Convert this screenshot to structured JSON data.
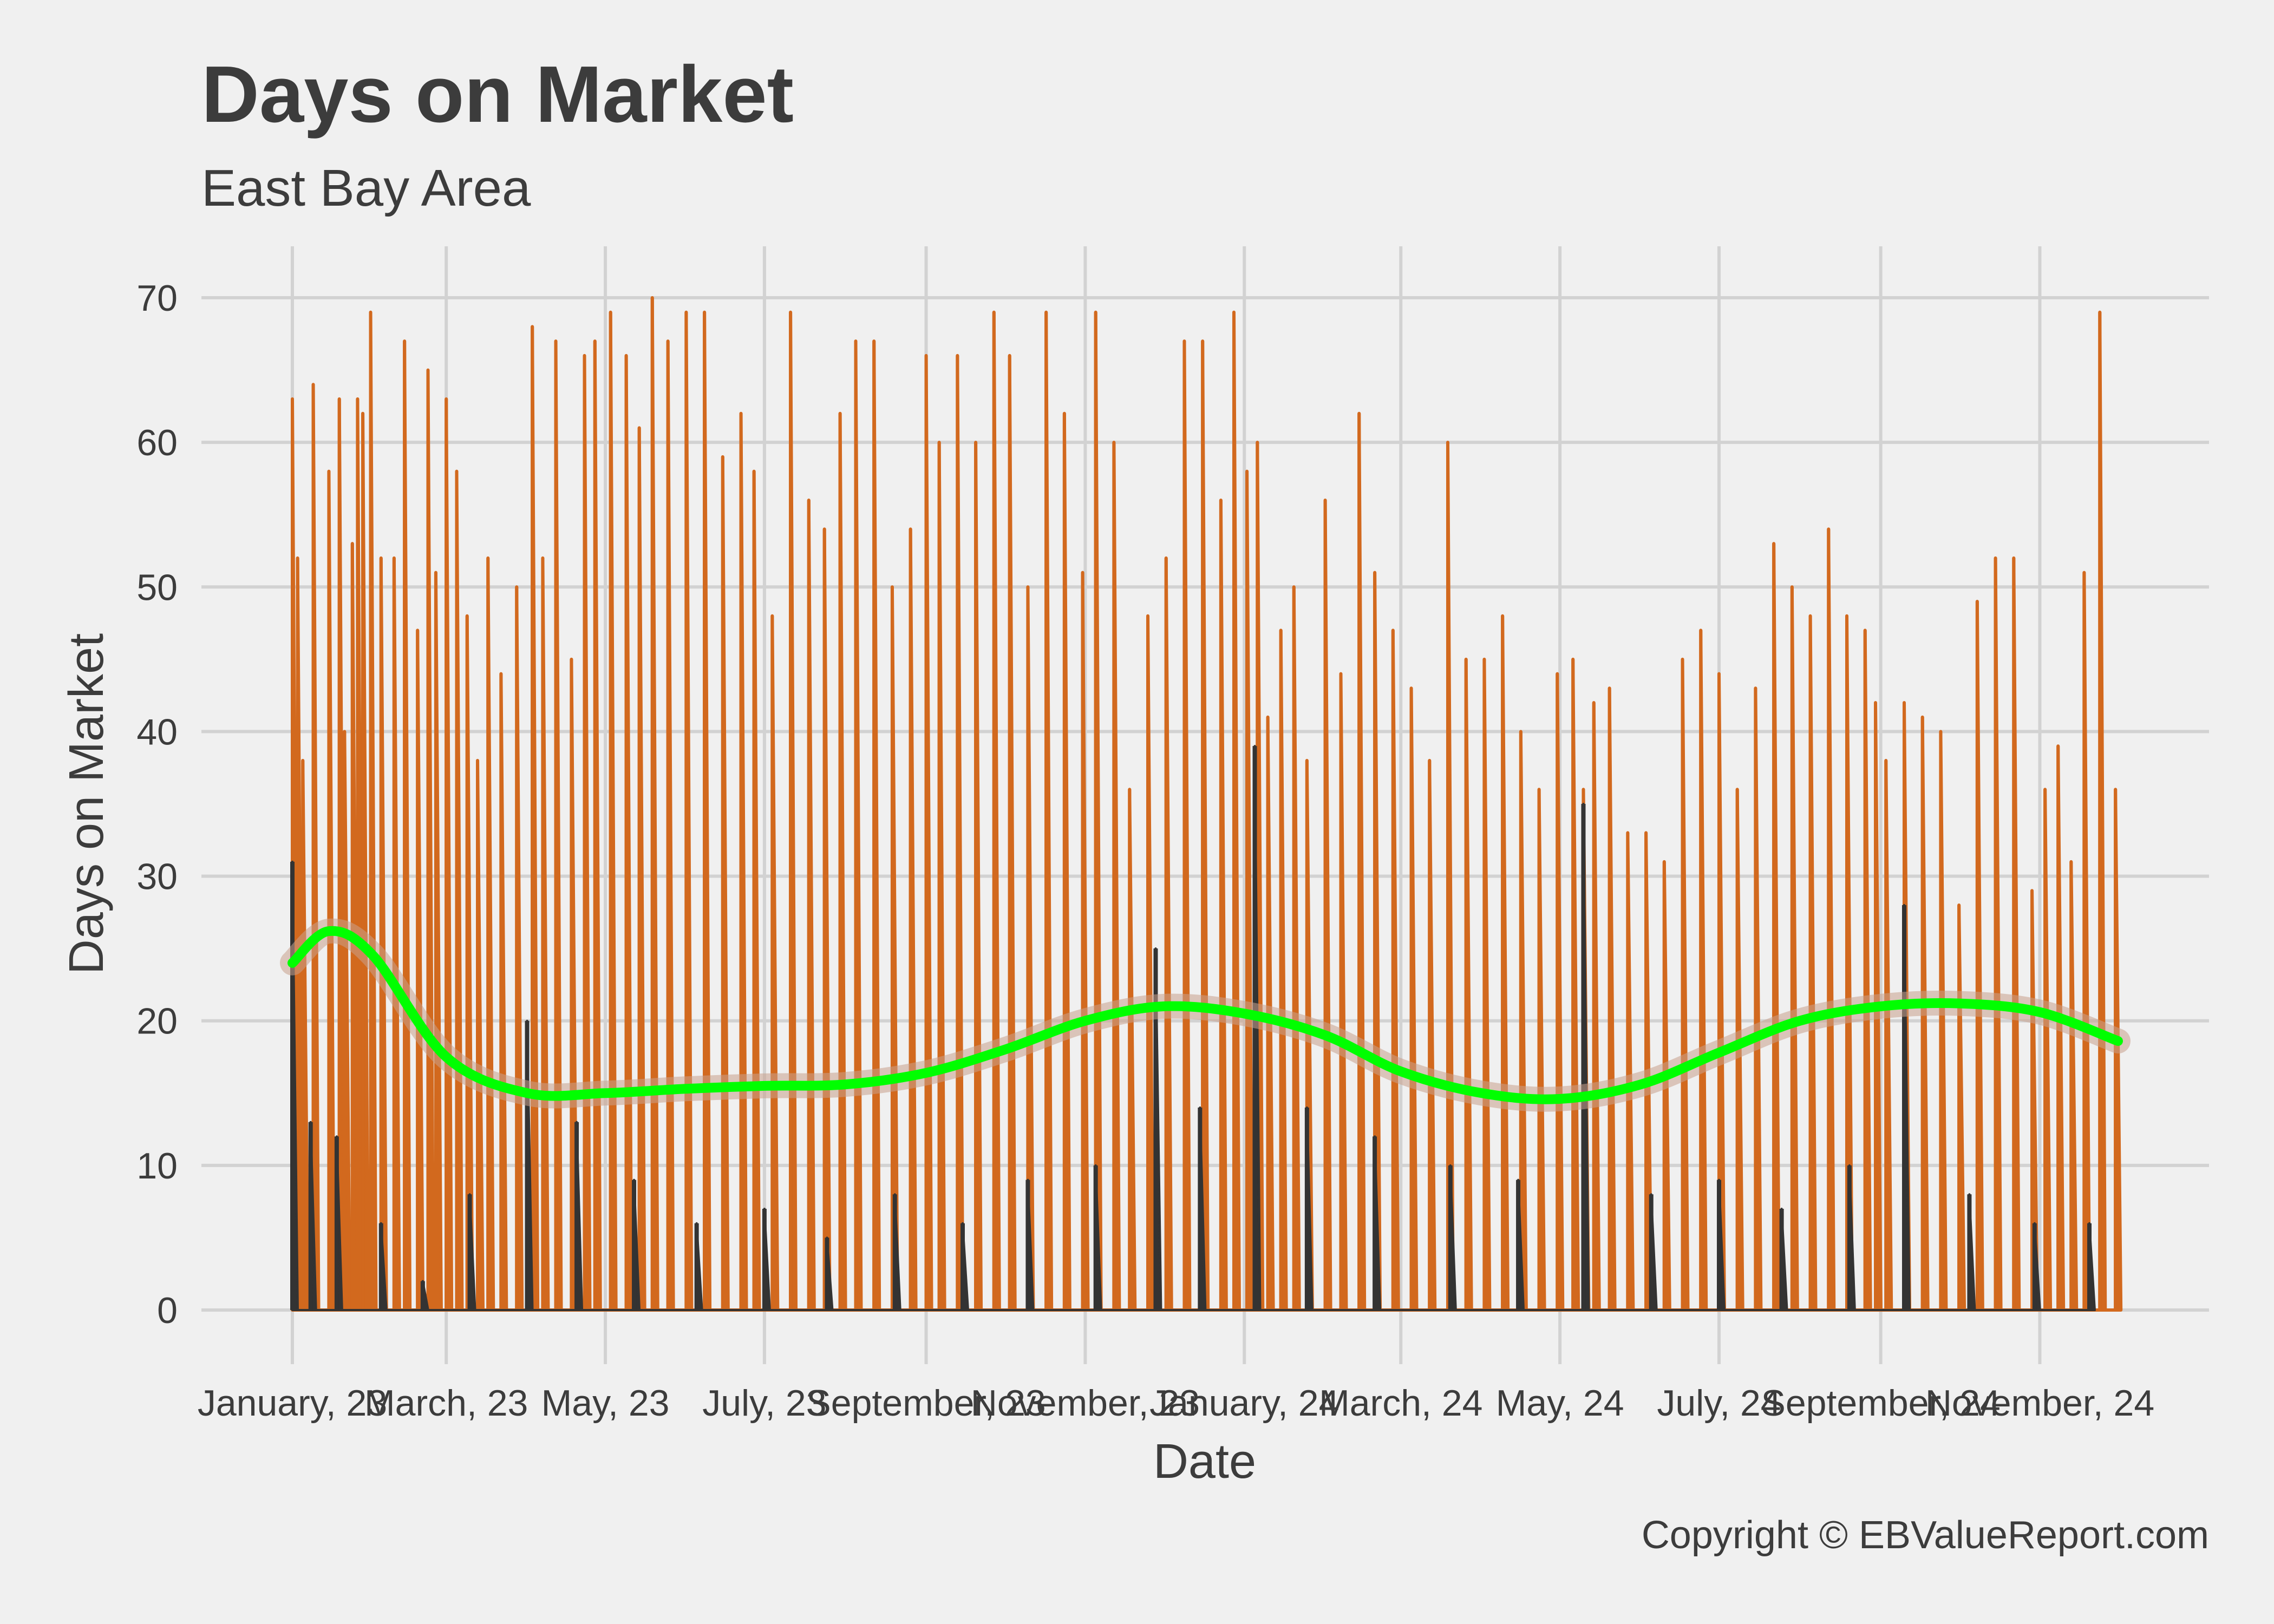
{
  "chart_data": {
    "type": "line",
    "title": "Days on Market",
    "subtitle": "East Bay Area",
    "xlabel": "Date",
    "ylabel": "Days on Market",
    "caption": "Copyright  © EBValueReport.com",
    "ylim": [
      0,
      70
    ],
    "yticks": [
      0,
      10,
      20,
      30,
      40,
      50,
      60,
      70
    ],
    "xlim": [
      "2023-01-01",
      "2024-12-01"
    ],
    "xticks": [
      {
        "date": "2023-01-01",
        "label": "January, 23"
      },
      {
        "date": "2023-03-01",
        "label": "March, 23"
      },
      {
        "date": "2023-05-01",
        "label": "May, 23"
      },
      {
        "date": "2023-07-01",
        "label": "July, 23"
      },
      {
        "date": "2023-09-01",
        "label": "September, 23"
      },
      {
        "date": "2023-11-01",
        "label": "November, 23"
      },
      {
        "date": "2024-01-01",
        "label": "January, 24"
      },
      {
        "date": "2024-03-01",
        "label": "March, 24"
      },
      {
        "date": "2024-05-01",
        "label": "May, 24"
      },
      {
        "date": "2024-07-01",
        "label": "July, 24"
      },
      {
        "date": "2024-09-01",
        "label": "September, 24"
      },
      {
        "date": "2024-11-01",
        "label": "November, 24"
      }
    ],
    "grid": true,
    "series": [
      {
        "kind": "spikes",
        "color": "#d2691e",
        "x": [
          "2023-01-01",
          "2023-01-03",
          "2023-01-05",
          "2023-01-09",
          "2023-01-15",
          "2023-01-19",
          "2023-01-21",
          "2023-01-24",
          "2023-01-26",
          "2023-01-28",
          "2023-01-31",
          "2023-02-04",
          "2023-02-09",
          "2023-02-13",
          "2023-02-18",
          "2023-02-22",
          "2023-02-25",
          "2023-03-01",
          "2023-03-05",
          "2023-03-09",
          "2023-03-13",
          "2023-03-17",
          "2023-03-22",
          "2023-03-28",
          "2023-04-03",
          "2023-04-07",
          "2023-04-12",
          "2023-04-18",
          "2023-04-23",
          "2023-04-27",
          "2023-05-03",
          "2023-05-09",
          "2023-05-14",
          "2023-05-19",
          "2023-05-25",
          "2023-06-01",
          "2023-06-08",
          "2023-06-15",
          "2023-06-22",
          "2023-06-27",
          "2023-07-04",
          "2023-07-11",
          "2023-07-18",
          "2023-07-24",
          "2023-07-30",
          "2023-08-05",
          "2023-08-12",
          "2023-08-19",
          "2023-08-26",
          "2023-09-01",
          "2023-09-06",
          "2023-09-13",
          "2023-09-20",
          "2023-09-27",
          "2023-10-03",
          "2023-10-10",
          "2023-10-17",
          "2023-10-24",
          "2023-10-31",
          "2023-11-05",
          "2023-11-12",
          "2023-11-18",
          "2023-11-25",
          "2023-12-02",
          "2023-12-09",
          "2023-12-16",
          "2023-12-23",
          "2023-12-28",
          "2024-01-02",
          "2024-01-06",
          "2024-01-10",
          "2024-01-15",
          "2024-01-20",
          "2024-01-25",
          "2024-02-01",
          "2024-02-07",
          "2024-02-14",
          "2024-02-20",
          "2024-02-27",
          "2024-03-05",
          "2024-03-12",
          "2024-03-19",
          "2024-03-26",
          "2024-04-02",
          "2024-04-09",
          "2024-04-16",
          "2024-04-23",
          "2024-04-30",
          "2024-05-06",
          "2024-05-10",
          "2024-05-14",
          "2024-05-20",
          "2024-05-27",
          "2024-06-03",
          "2024-06-10",
          "2024-06-17",
          "2024-06-24",
          "2024-07-01",
          "2024-07-08",
          "2024-07-15",
          "2024-07-22",
          "2024-07-29",
          "2024-08-05",
          "2024-08-12",
          "2024-08-19",
          "2024-08-26",
          "2024-08-30",
          "2024-09-03",
          "2024-09-10",
          "2024-09-17",
          "2024-09-24",
          "2024-10-01",
          "2024-10-08",
          "2024-10-15",
          "2024-10-22",
          "2024-10-29",
          "2024-11-03",
          "2024-11-08",
          "2024-11-13",
          "2024-11-18",
          "2024-11-24",
          "2024-11-30"
        ],
        "values": [
          63,
          52,
          38,
          64,
          58,
          63,
          40,
          53,
          63,
          62,
          69,
          52,
          52,
          67,
          47,
          65,
          51,
          63,
          58,
          48,
          38,
          52,
          44,
          50,
          68,
          52,
          67,
          45,
          66,
          67,
          69,
          66,
          61,
          70,
          67,
          69,
          69,
          59,
          62,
          58,
          48,
          69,
          56,
          54,
          62,
          67,
          67,
          50,
          54,
          66,
          60,
          66,
          60,
          69,
          66,
          50,
          69,
          62,
          51,
          69,
          60,
          36,
          48,
          52,
          67,
          67,
          56,
          69,
          58,
          60,
          41,
          47,
          50,
          38,
          56,
          44,
          62,
          51,
          47,
          43,
          38,
          60,
          45,
          45,
          48,
          40,
          36,
          44,
          45,
          36,
          42,
          43,
          33,
          33,
          31,
          45,
          47,
          44,
          36,
          43,
          53,
          50,
          48,
          54,
          48,
          47,
          42,
          38,
          42,
          41,
          40,
          28,
          49,
          52,
          52,
          29,
          36,
          39,
          31,
          51,
          69,
          36
        ]
      },
      {
        "kind": "spikes-dark",
        "color": "#333333",
        "x": [
          "2023-01-01",
          "2023-01-08",
          "2023-01-18",
          "2023-02-04",
          "2023-02-20",
          "2023-03-10",
          "2023-04-01",
          "2023-04-20",
          "2023-05-12",
          "2023-06-05",
          "2023-07-01",
          "2023-07-25",
          "2023-08-20",
          "2023-09-15",
          "2023-10-10",
          "2023-11-05",
          "2023-11-28",
          "2023-12-15",
          "2024-01-05",
          "2024-01-25",
          "2024-02-20",
          "2024-03-20",
          "2024-04-15",
          "2024-05-10",
          "2024-06-05",
          "2024-07-01",
          "2024-07-25",
          "2024-08-20",
          "2024-09-10",
          "2024-10-05",
          "2024-10-30",
          "2024-11-20"
        ],
        "values": [
          31,
          13,
          12,
          6,
          2,
          8,
          20,
          13,
          9,
          6,
          7,
          5,
          8,
          6,
          9,
          10,
          25,
          14,
          39,
          14,
          12,
          10,
          9,
          35,
          8,
          9,
          7,
          10,
          28,
          8,
          6,
          6
        ]
      },
      {
        "name": "",
        "kind": "smooth",
        "color": "#00ff00",
        "x": [
          "2023-01-01",
          "2023-01-15",
          "2023-02-01",
          "2023-03-01",
          "2023-04-01",
          "2023-05-01",
          "2023-06-01",
          "2023-07-01",
          "2023-08-01",
          "2023-09-01",
          "2023-10-01",
          "2023-11-01",
          "2023-12-01",
          "2024-01-01",
          "2024-02-01",
          "2024-03-01",
          "2024-04-01",
          "2024-05-01",
          "2024-06-01",
          "2024-07-01",
          "2024-08-01",
          "2024-09-01",
          "2024-10-01",
          "2024-11-01",
          "2024-12-01"
        ],
        "values": [
          24,
          26.2,
          24.5,
          17.5,
          15,
          15,
          15.3,
          15.5,
          15.6,
          16.4,
          18,
          20,
          21,
          20.5,
          19,
          16.5,
          15,
          14.6,
          15.6,
          17.8,
          20,
          21,
          21.2,
          20.6,
          18.6
        ]
      }
    ]
  }
}
